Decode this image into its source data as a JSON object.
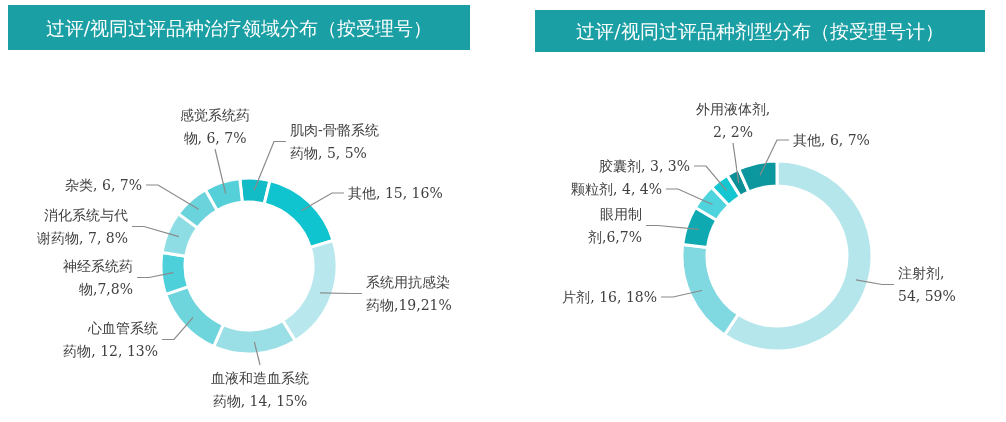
{
  "chart_data": [
    {
      "type": "donut",
      "title": "过评/视同过评品种治疗领域分布（按受理号）",
      "categories": [
        "肌肉-骨骼系统药物, 5, 5%",
        "其他, 15, 16%",
        "系统用抗感染药物,19,21%",
        "血液和造血系统药物, 14, 15%",
        "心血管系统药物, 12, 13%",
        "神经系统药物,7,8%",
        "消化系统与代谢药物, 7, 8%",
        "杂类, 6, 7%",
        "感觉系统药物, 6, 7%"
      ],
      "values": [
        5,
        15,
        19,
        14,
        12,
        7,
        7,
        6,
        6
      ],
      "colors": [
        "#12bcc6",
        "#0fc4ce",
        "#b8e8ed",
        "#9adfe6",
        "#6fd5dd",
        "#4dd0da",
        "#8edde4",
        "#6ad3db",
        "#55d0d9"
      ]
    },
    {
      "type": "donut",
      "title": "过评/视同过评品种剂型分布（按受理号计）",
      "categories": [
        "注射剂, 54, 59%",
        "片剂, 16, 18%",
        "眼用制剂,6,7%",
        "颗粒剂, 4, 4%",
        "胶囊剂, 3, 3%",
        "外用液体剂, 2, 2%",
        "其他, 6, 7%"
      ],
      "values": [
        54,
        16,
        6,
        4,
        3,
        2,
        6
      ],
      "colors": [
        "#b5e6eb",
        "#80d8e0",
        "#0fa9b1",
        "#4fd3dc",
        "#14c6d0",
        "#0b8f96",
        "#0c979e"
      ]
    }
  ]
}
